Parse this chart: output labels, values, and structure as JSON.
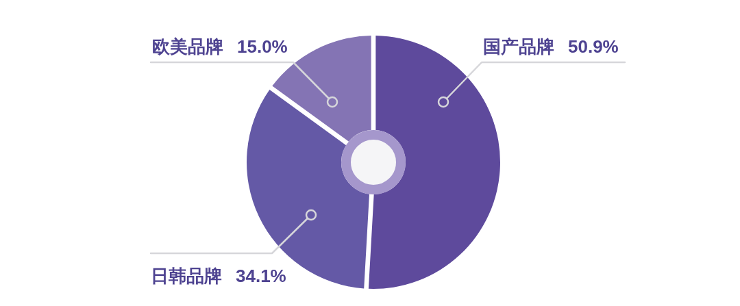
{
  "chart_data": {
    "type": "donut",
    "categories": [
      "国产品牌",
      "日韩品牌",
      "欧美品牌"
    ],
    "values": [
      50.9,
      34.1,
      15.0
    ],
    "value_labels": [
      "50.9%",
      "34.1%",
      "15.0%"
    ],
    "colors": [
      "#5e4a9c",
      "#6459a6",
      "#8474b4"
    ]
  }
}
